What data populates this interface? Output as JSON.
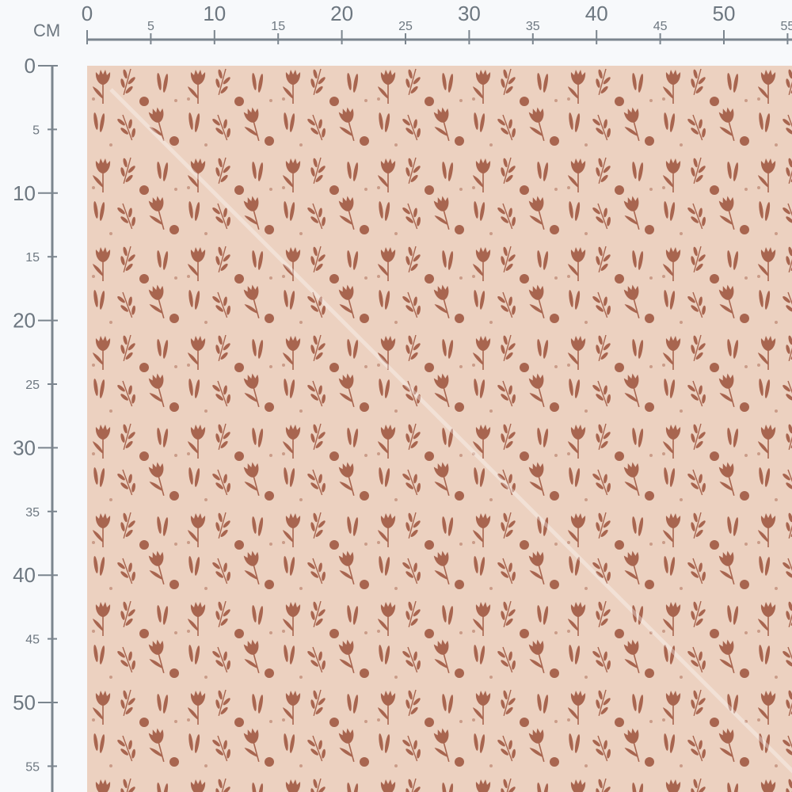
{
  "ruler": {
    "unit_label": "CM",
    "top_labels": [
      "0",
      "5",
      "10",
      "15",
      "20",
      "25",
      "30",
      "35",
      "40",
      "45",
      "50",
      "55"
    ],
    "left_labels": [
      "0",
      "5",
      "10",
      "15",
      "20",
      "25",
      "30",
      "35",
      "40",
      "45",
      "50",
      "55"
    ]
  },
  "fabric": {
    "pattern": "small tulip floral",
    "background_color": "#ecd1c0",
    "motif_color": "#a8654f"
  }
}
